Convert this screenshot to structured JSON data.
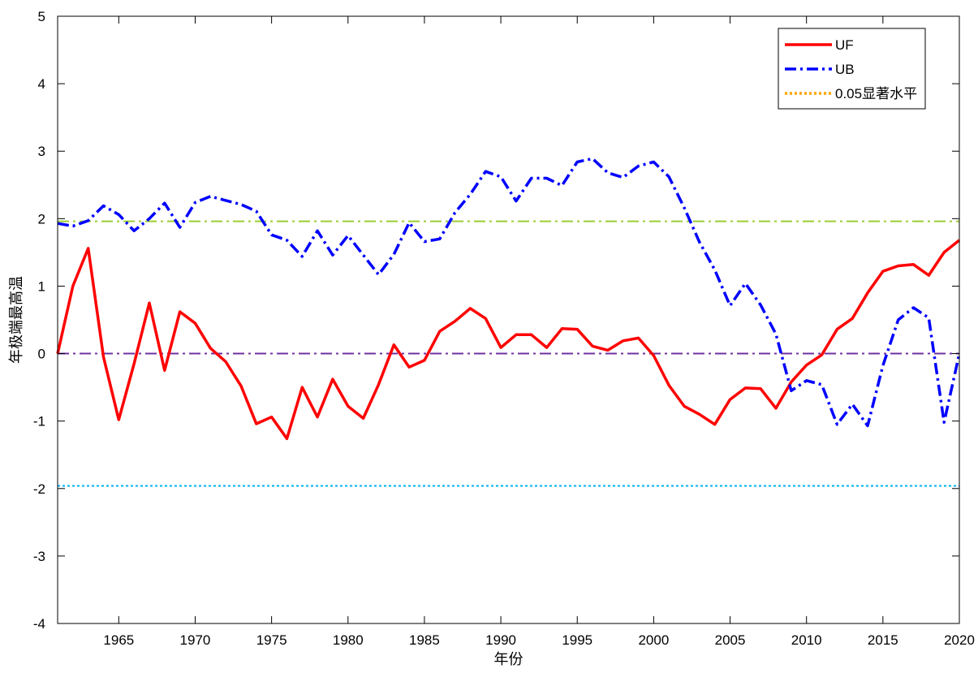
{
  "chart_data": {
    "type": "line",
    "xlabel": "年份",
    "ylabel": "年极端最高温",
    "xlim": [
      1961,
      2020
    ],
    "ylim": [
      -4,
      5
    ],
    "x_ticks": [
      1965,
      1970,
      1975,
      1980,
      1985,
      1990,
      1995,
      2000,
      2005,
      2010,
      2015,
      2020
    ],
    "y_ticks": [
      -4,
      -3,
      -2,
      -1,
      0,
      1,
      2,
      3,
      4,
      5
    ],
    "x": [
      1961,
      1962,
      1963,
      1964,
      1965,
      1966,
      1967,
      1968,
      1969,
      1970,
      1971,
      1972,
      1973,
      1974,
      1975,
      1976,
      1977,
      1978,
      1979,
      1980,
      1981,
      1982,
      1983,
      1984,
      1985,
      1986,
      1987,
      1988,
      1989,
      1990,
      1991,
      1992,
      1993,
      1994,
      1995,
      1996,
      1997,
      1998,
      1999,
      2000,
      2001,
      2002,
      2003,
      2004,
      2005,
      2006,
      2007,
      2008,
      2009,
      2010,
      2011,
      2012,
      2013,
      2014,
      2015,
      2016,
      2017,
      2018,
      2019,
      2020
    ],
    "series": [
      {
        "name": "UF",
        "color": "#ff0000",
        "style": "solid",
        "values": [
          0,
          1.0,
          1.56,
          -0.05,
          -0.98,
          -0.15,
          0.75,
          -0.25,
          0.62,
          0.45,
          0.08,
          -0.12,
          -0.48,
          -1.04,
          -0.94,
          -1.26,
          -0.5,
          -0.94,
          -0.38,
          -0.78,
          -0.96,
          -0.46,
          0.13,
          -0.2,
          -0.1,
          0.33,
          0.48,
          0.67,
          0.52,
          0.09,
          0.28,
          0.28,
          0.09,
          0.37,
          0.36,
          0.11,
          0.05,
          0.19,
          0.23,
          -0.03,
          -0.47,
          -0.78,
          -0.9,
          -1.05,
          -0.68,
          -0.51,
          -0.52,
          -0.81,
          -0.42,
          -0.17,
          -0.02,
          0.36,
          0.52,
          0.9,
          1.22,
          1.3,
          1.32,
          1.16,
          1.5,
          1.68
        ]
      },
      {
        "name": "UB",
        "color": "#0000ff",
        "style": "dashdot",
        "values": [
          1.93,
          1.89,
          1.97,
          2.19,
          2.06,
          1.82,
          2.0,
          2.23,
          1.87,
          2.24,
          2.33,
          2.27,
          2.21,
          2.11,
          1.76,
          1.68,
          1.44,
          1.82,
          1.46,
          1.75,
          1.46,
          1.17,
          1.47,
          1.94,
          1.66,
          1.7,
          2.09,
          2.36,
          2.7,
          2.62,
          2.26,
          2.6,
          2.6,
          2.49,
          2.84,
          2.89,
          2.68,
          2.61,
          2.78,
          2.84,
          2.62,
          2.16,
          1.65,
          1.24,
          0.71,
          1.04,
          0.72,
          0.29,
          -0.55,
          -0.4,
          -0.46,
          -1.05,
          -0.75,
          -1.07,
          -0.18,
          0.5,
          0.68,
          0.53,
          -1.02,
          0
        ]
      }
    ],
    "reference_lines": [
      {
        "y": 1.96,
        "color": "#9acd32",
        "style": "dashdot"
      },
      {
        "y": 0,
        "color": "#7030a0",
        "style": "dashdot"
      },
      {
        "y": -1.96,
        "color": "#00b0f0",
        "style": "dotted"
      }
    ],
    "legend": {
      "placement": "top-right",
      "entries": [
        {
          "label": "UF",
          "color": "#ff0000",
          "style": "solid"
        },
        {
          "label": "UB",
          "color": "#0000ff",
          "style": "dashdot"
        },
        {
          "label": "0.05显著水平",
          "color": "#ffa500",
          "style": "dotted"
        }
      ]
    },
    "grid": false
  }
}
